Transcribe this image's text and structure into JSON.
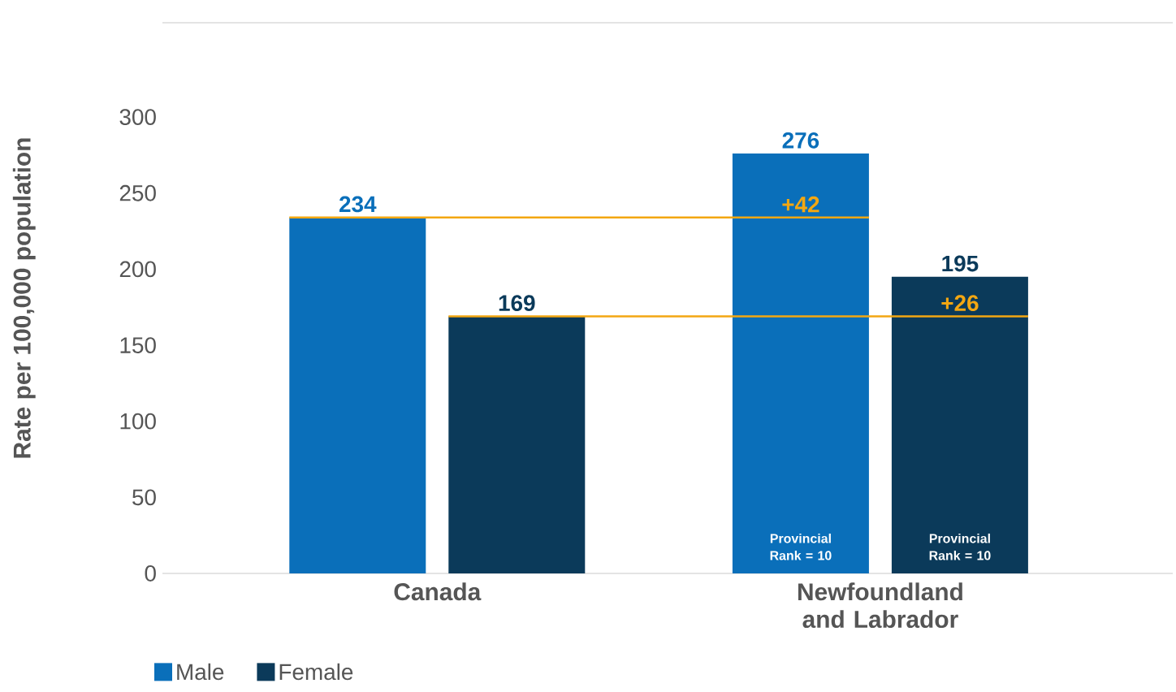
{
  "chart_data": {
    "type": "bar",
    "ylabel": "Rate per 100,000 population",
    "categories": [
      "Canada",
      "Newfoundland and Labrador"
    ],
    "series": [
      {
        "name": "Male",
        "color": "#0a6fba",
        "values": [
          234,
          276
        ]
      },
      {
        "name": "Female",
        "color": "#0b3a5a",
        "values": [
          169,
          195
        ]
      }
    ],
    "ylim": [
      0,
      362
    ],
    "yticks": [
      0,
      50,
      100,
      150,
      200,
      250,
      300
    ],
    "data_labels": true,
    "legend": "bottom left",
    "ref_lines": [
      {
        "axis": "y",
        "value": 234,
        "color": "#f3a712"
      },
      {
        "axis": "y",
        "value": 169,
        "color": "#f3a712"
      }
    ],
    "annotations": [
      "+42",
      "+26",
      "Provincial Rank = 10",
      "Provincial Rank = 10"
    ]
  }
}
